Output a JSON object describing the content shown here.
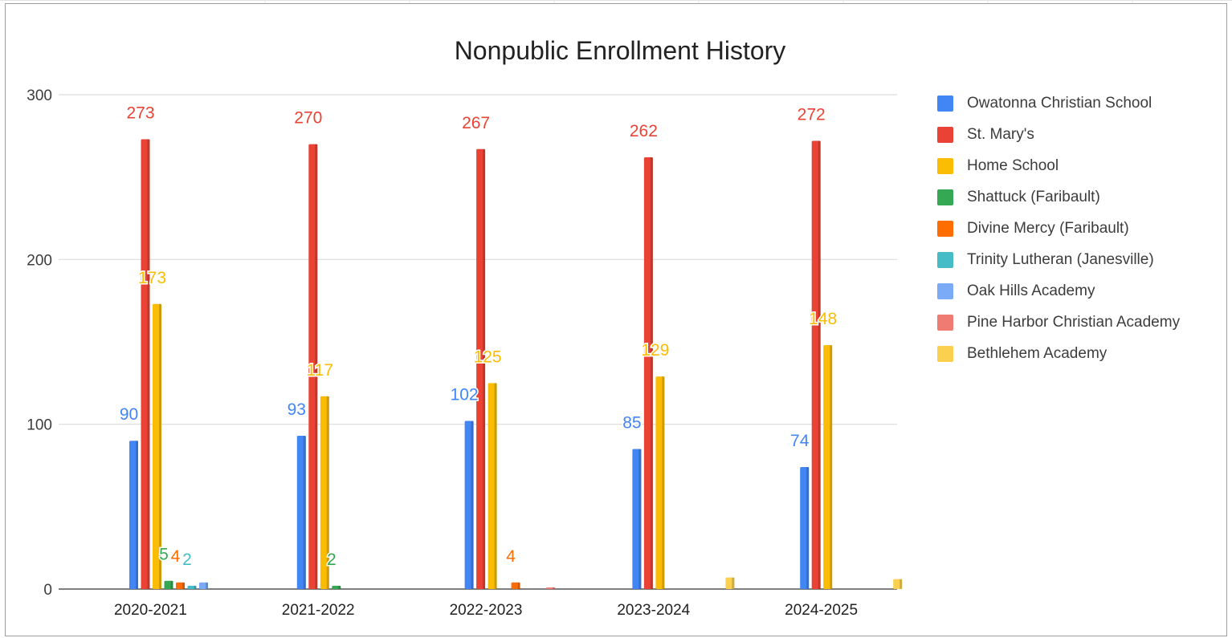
{
  "chart_data": {
    "type": "bar",
    "title": "Nonpublic Enrollment History",
    "xlabel": "",
    "ylabel": "",
    "ylim": [
      0,
      300
    ],
    "yticks": [
      0,
      100,
      200,
      300
    ],
    "grid": true,
    "legend_position": "right",
    "categories": [
      "2020-2021",
      "2021-2022",
      "2022-2023",
      "2023-2024",
      "2024-2025"
    ],
    "series": [
      {
        "name": "Owatonna Christian School",
        "color": "#4285f4",
        "values": [
          90,
          93,
          102,
          85,
          74
        ],
        "labels": [
          "90",
          "93",
          "102",
          "85",
          "74"
        ]
      },
      {
        "name": "St. Mary's",
        "color": "#ea4335",
        "values": [
          273,
          270,
          267,
          262,
          272
        ],
        "labels": [
          "273",
          "270",
          "267",
          "262",
          "272"
        ]
      },
      {
        "name": "Home School",
        "color": "#fbbc04",
        "values": [
          173,
          117,
          125,
          129,
          148
        ],
        "labels": [
          "173",
          "117",
          "125",
          "129",
          "148"
        ]
      },
      {
        "name": "Shattuck (Faribault)",
        "color": "#34a853",
        "values": [
          5,
          2,
          null,
          null,
          null
        ],
        "labels": [
          "5",
          "2",
          "",
          "",
          ""
        ]
      },
      {
        "name": "Divine Mercy (Faribault)",
        "color": "#ff6d01",
        "values": [
          4,
          null,
          4,
          null,
          null
        ],
        "labels": [
          "4",
          "",
          "4",
          "",
          ""
        ]
      },
      {
        "name": "Trinity Lutheran (Janesville)",
        "color": "#46bdc6",
        "values": [
          2,
          null,
          null,
          null,
          null
        ],
        "labels": [
          "2",
          "",
          "",
          "",
          ""
        ]
      },
      {
        "name": "Oak Hills Academy",
        "color": "#7baaf7",
        "values": [
          4,
          null,
          null,
          null,
          null
        ],
        "labels": [
          "",
          "",
          "",
          "",
          ""
        ]
      },
      {
        "name": "Pine Harbor Christian Academy",
        "color": "#f07b72",
        "values": [
          null,
          null,
          1,
          null,
          null
        ],
        "labels": [
          "",
          "",
          "",
          "",
          ""
        ]
      },
      {
        "name": "Bethlehem Academy",
        "color": "#fcd04f",
        "values": [
          null,
          null,
          null,
          7,
          6
        ],
        "labels": [
          "",
          "",
          "",
          "",
          ""
        ]
      }
    ]
  }
}
